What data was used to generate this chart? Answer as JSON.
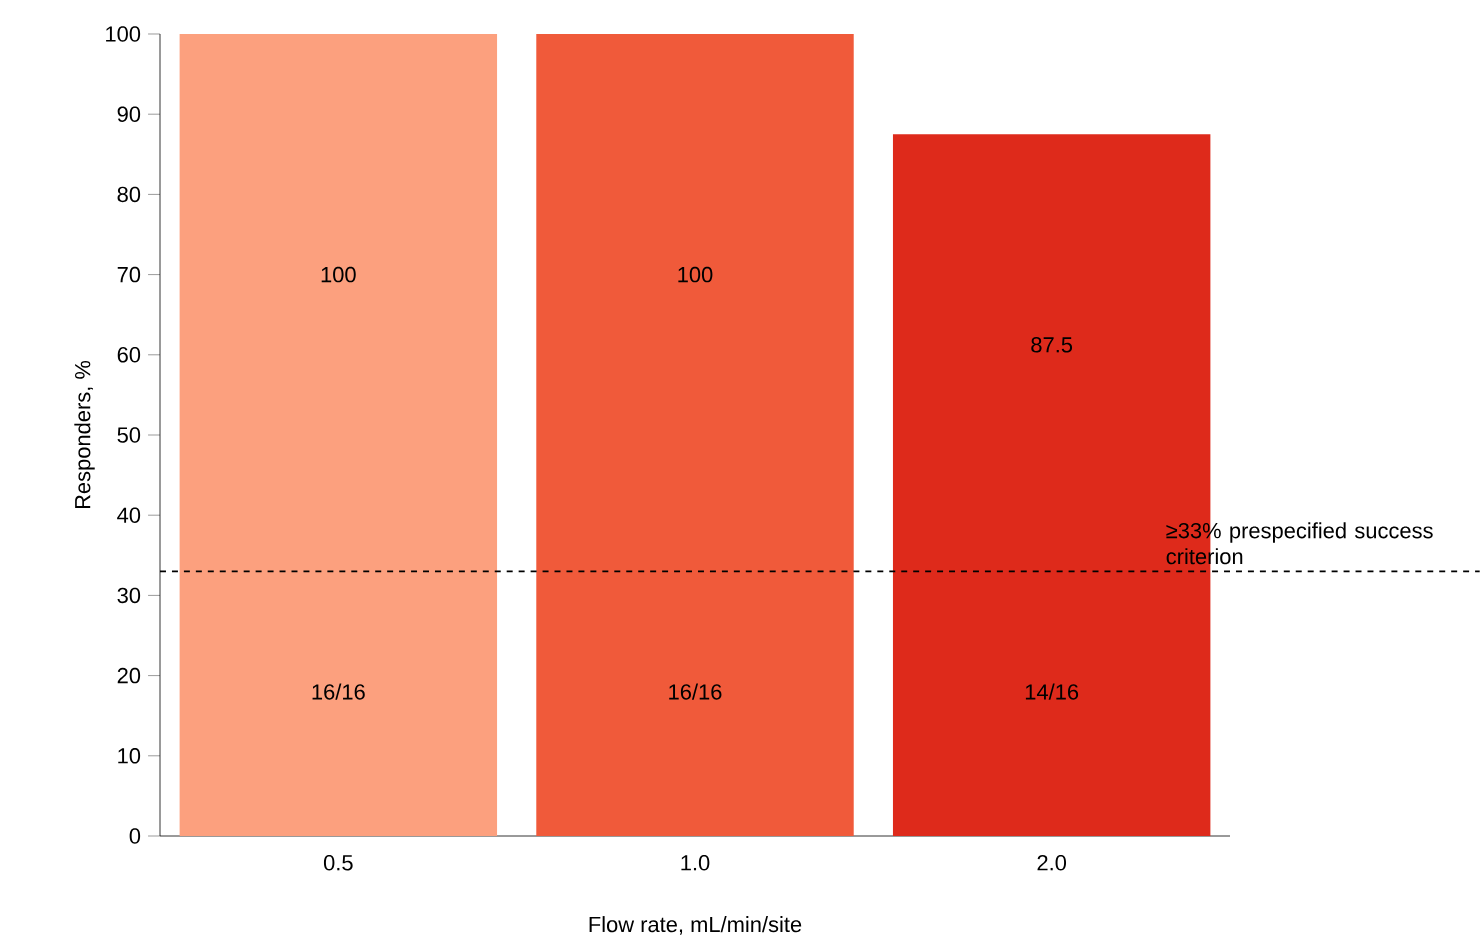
{
  "chart_data": {
    "type": "bar",
    "xlabel": "Flow rate, mL/min/site",
    "ylabel": "Responders, %",
    "categories": [
      "0.5",
      "1.0",
      "2.0"
    ],
    "values": [
      100,
      100,
      87.5
    ],
    "colors": [
      "#fca07e",
      "#f05a3a",
      "#de2a1b"
    ],
    "ylim": [
      0,
      100
    ],
    "yticks": [
      0,
      10,
      20,
      30,
      40,
      50,
      60,
      70,
      80,
      90,
      100
    ],
    "data_labels": true,
    "grid": false,
    "ref_lines": [
      {
        "axis": "y",
        "value": 33,
        "label": "≥33% prespecified success criterion",
        "line_style": "dashed",
        "color": "#000000"
      }
    ],
    "annotations": [
      "16/16",
      "16/16",
      "14/16"
    ]
  }
}
